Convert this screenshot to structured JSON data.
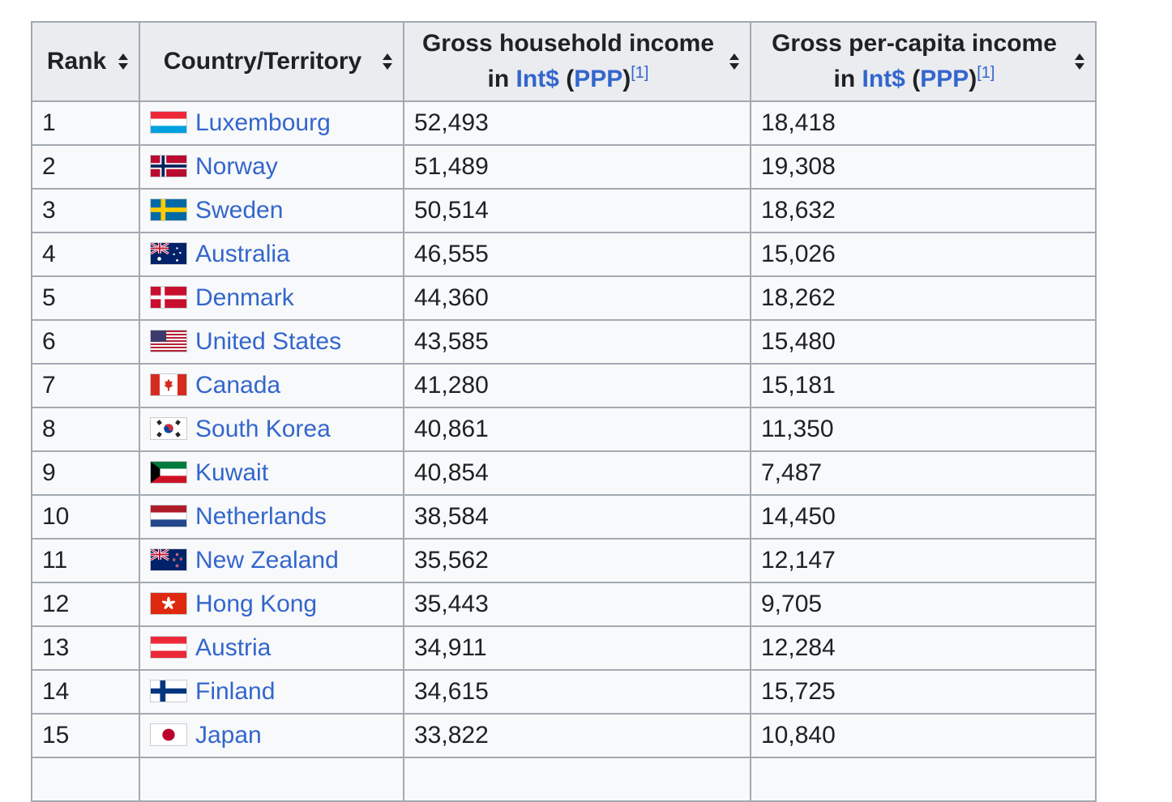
{
  "table": {
    "headers": {
      "rank": "Rank",
      "country": "Country/Territory",
      "household_line1": "Gross household income",
      "household_in": "in",
      "household_int": "Int$",
      "household_ppp": "PPP",
      "household_ref": "[1]",
      "percapita_line1": "Gross per-capita income",
      "percapita_in": "in",
      "percapita_int": "Int$",
      "percapita_ppp": "PPP",
      "percapita_ref": "[1]"
    },
    "rows": [
      {
        "rank": "1",
        "country": "Luxembourg",
        "flag": "luxembourg-flag",
        "household": "52,493",
        "percapita": "18,418"
      },
      {
        "rank": "2",
        "country": "Norway",
        "flag": "norway-flag",
        "household": "51,489",
        "percapita": "19,308"
      },
      {
        "rank": "3",
        "country": "Sweden",
        "flag": "sweden-flag",
        "household": "50,514",
        "percapita": "18,632"
      },
      {
        "rank": "4",
        "country": "Australia",
        "flag": "australia-flag",
        "household": "46,555",
        "percapita": "15,026"
      },
      {
        "rank": "5",
        "country": "Denmark",
        "flag": "denmark-flag",
        "household": "44,360",
        "percapita": "18,262"
      },
      {
        "rank": "6",
        "country": "United States",
        "flag": "united-states-flag",
        "household": "43,585",
        "percapita": "15,480"
      },
      {
        "rank": "7",
        "country": "Canada",
        "flag": "canada-flag",
        "household": "41,280",
        "percapita": "15,181"
      },
      {
        "rank": "8",
        "country": "South Korea",
        "flag": "south-korea-flag",
        "household": "40,861",
        "percapita": "11,350"
      },
      {
        "rank": "9",
        "country": "Kuwait",
        "flag": "kuwait-flag",
        "household": "40,854",
        "percapita": "7,487"
      },
      {
        "rank": "10",
        "country": "Netherlands",
        "flag": "netherlands-flag",
        "household": "38,584",
        "percapita": "14,450"
      },
      {
        "rank": "11",
        "country": "New Zealand",
        "flag": "new-zealand-flag",
        "household": "35,562",
        "percapita": "12,147"
      },
      {
        "rank": "12",
        "country": "Hong Kong",
        "flag": "hong-kong-flag",
        "household": "35,443",
        "percapita": "9,705"
      },
      {
        "rank": "13",
        "country": "Austria",
        "flag": "austria-flag",
        "household": "34,911",
        "percapita": "12,284"
      },
      {
        "rank": "14",
        "country": "Finland",
        "flag": "finland-flag",
        "household": "34,615",
        "percapita": "15,725"
      },
      {
        "rank": "15",
        "country": "Japan",
        "flag": "japan-flag",
        "household": "33,822",
        "percapita": "10,840"
      }
    ]
  },
  "colors": {
    "link": "#3366cc",
    "header_bg": "#eaecf0",
    "cell_bg": "#f8f9fa",
    "border": "#a2a9b1"
  }
}
